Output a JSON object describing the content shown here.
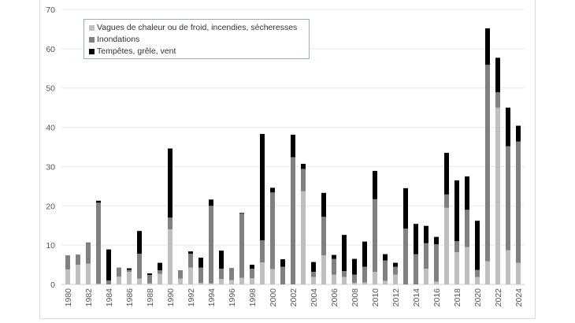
{
  "chart_data": {
    "type": "bar",
    "stacked": true,
    "title": "",
    "xlabel": "",
    "ylabel": "",
    "ylim": [
      0,
      70
    ],
    "yticks": [
      0,
      10,
      20,
      30,
      40,
      50,
      60,
      70
    ],
    "grid": true,
    "legend_placement": "top-left",
    "categories": [
      1980,
      1981,
      1982,
      1983,
      1984,
      1985,
      1986,
      1987,
      1988,
      1989,
      1990,
      1991,
      1992,
      1993,
      1994,
      1995,
      1996,
      1997,
      1998,
      1999,
      2000,
      2001,
      2002,
      2003,
      2004,
      2005,
      2006,
      2007,
      2008,
      2009,
      2010,
      2011,
      2012,
      2013,
      2014,
      2015,
      2016,
      2017,
      2018,
      2019,
      2020,
      2021,
      2022,
      2023,
      2024
    ],
    "xtick_labels": [
      "1980",
      "1982",
      "1984",
      "1986",
      "1988",
      "1990",
      "1992",
      "1994",
      "1996",
      "1998",
      "2000",
      "2002",
      "2004",
      "2006",
      "2008",
      "2010",
      "2012",
      "2014",
      "2016",
      "2018",
      "2020",
      "2022",
      "2024"
    ],
    "series": [
      {
        "name": "Vagues de chaleur ou de froid, incendies, sécheresses",
        "color": "#bfbfbf",
        "values": [
          3.8,
          5,
          5.3,
          0.2,
          0,
          2,
          3.2,
          1.5,
          0.3,
          2.7,
          14,
          1.5,
          4.3,
          0.4,
          0.3,
          1.4,
          1.1,
          1.7,
          1.6,
          5.6,
          3.9,
          0,
          0,
          23.7,
          1.9,
          7.4,
          2.5,
          1.9,
          0.4,
          0.5,
          3.2,
          0.9,
          2.5,
          0,
          0,
          4,
          0.7,
          19.5,
          8.2,
          9.5,
          1.9,
          5.9,
          45,
          8.7,
          5.5
        ]
      },
      {
        "name": "Inondations",
        "color": "#808080",
        "values": [
          3.6,
          2.6,
          5.4,
          20.6,
          1,
          2.3,
          0.5,
          6.3,
          2.1,
          0.9,
          3,
          2.1,
          3.5,
          3.9,
          19.7,
          2.6,
          3.1,
          16.3,
          2.4,
          5.6,
          19.5,
          4.5,
          32.4,
          5.7,
          1.3,
          9.8,
          4,
          1.5,
          2.1,
          4,
          18.5,
          5.2,
          2,
          14.2,
          7.7,
          6.5,
          9.5,
          3.4,
          2.8,
          9.5,
          1.8,
          50,
          3.9,
          26.5,
          30.9
        ]
      },
      {
        "name": "Tempêtes, grêle, vent",
        "color": "#000000",
        "values": [
          0,
          0,
          0,
          0.5,
          7.9,
          0,
          0.4,
          5.8,
          0.4,
          1.9,
          17.6,
          0,
          0.6,
          2.5,
          1.6,
          4.6,
          0,
          0.2,
          1,
          27.1,
          1.2,
          1.9,
          5.7,
          1.3,
          2.5,
          6.1,
          1,
          9.2,
          4,
          6.4,
          7.2,
          1.6,
          1,
          10.3,
          7.7,
          4.4,
          1.9,
          10.6,
          15.5,
          8.5,
          12.5,
          9.3,
          8.8,
          9.8,
          4
        ]
      }
    ]
  }
}
